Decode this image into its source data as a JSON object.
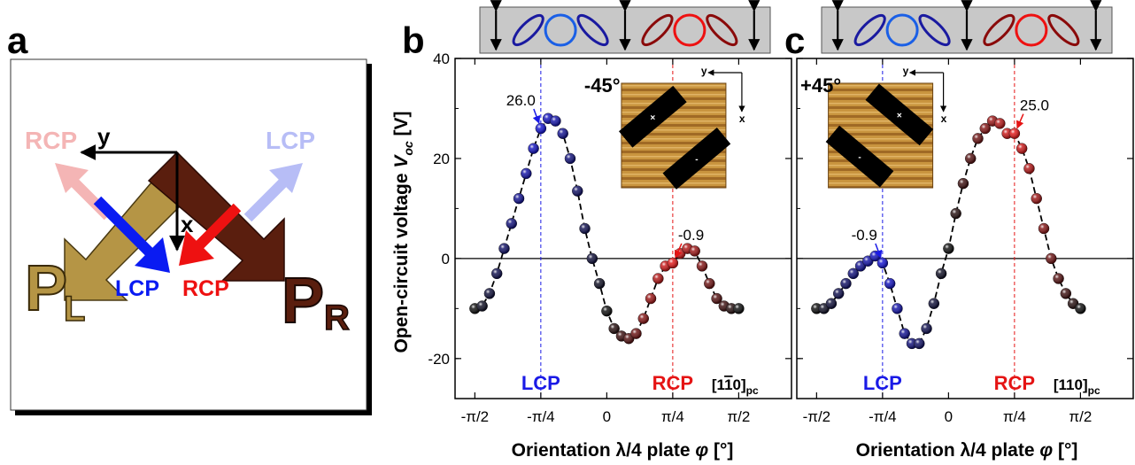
{
  "panel_labels": {
    "a": "a",
    "b": "b",
    "c": "c"
  },
  "panel_a": {
    "p_l": "P",
    "p_l_sub": "L",
    "p_r": "P",
    "p_r_sub": "R",
    "lcp_bottom": "LCP",
    "rcp_bottom": "RCP",
    "lcp_faded": "LCP",
    "rcp_faded": "RCP",
    "axis_y": "y",
    "axis_x": "x",
    "colors": {
      "gold": "#b59545",
      "dark_brown": "#5a1e0e",
      "blue": "#0a1bf2",
      "red": "#ee1111",
      "faded_blue": "#b7bdf6",
      "faded_red": "#f4b5b5"
    }
  },
  "panel_b": {
    "angle_label": "-45°",
    "inset_axis_y": "y",
    "inset_axis_x": "x",
    "lcp_label": "LCP",
    "rcp_label": "RCP",
    "direction_label": "[1̅1̅0]pc",
    "direction_main": "[1",
    "direction_bar": "1",
    "direction_end": "0]",
    "direction_sub": "pc",
    "annot_lcp": "26.0",
    "annot_rcp": "-0.9"
  },
  "panel_c": {
    "angle_label": "+45°",
    "inset_axis_y": "y",
    "inset_axis_x": "x",
    "lcp_label": "LCP",
    "rcp_label": "RCP",
    "direction_main": "[110]",
    "direction_sub": "pc",
    "annot_lcp": "-0.9",
    "annot_rcp": "25.0"
  },
  "axes": {
    "ylabel_main": "Open-circuit voltage ",
    "ylabel_sym": "V",
    "ylabel_sub": "oc",
    "ylabel_unit": " [V]",
    "xlabel_main": "Orientation λ/4 plate  ",
    "xlabel_sym": "φ",
    "xlabel_unit": " [°]",
    "y_ticks": [
      "40",
      "20",
      "0",
      "-20"
    ],
    "x_ticks": [
      "-π/2",
      "-π/4",
      "0",
      "π/4",
      "π/2"
    ]
  },
  "chart_data": [
    {
      "type": "scatter",
      "panel": "b",
      "xlabel": "Orientation λ/4 plate φ [°]",
      "ylabel": "Open-circuit voltage Voc [V]",
      "xlim": [
        -103.5,
        126
      ],
      "ylim": [
        -28,
        40
      ],
      "x_ticks": [
        -90,
        -45,
        0,
        45,
        90
      ],
      "y_ticks": [
        40,
        20,
        0,
        -20
      ],
      "reference_lines": {
        "LCP": -45,
        "RCP": 45,
        "zero": 0
      },
      "annotations": [
        {
          "x": -45,
          "y": 26.0,
          "text": "26.0"
        },
        {
          "x": 45,
          "y": -0.9,
          "text": "-0.9"
        }
      ],
      "series": [
        {
          "x": [
            -90,
            -85,
            -80,
            -75,
            -70,
            -65,
            -60,
            -55,
            -50,
            -45,
            -40,
            -35,
            -30,
            -25,
            -20,
            -15,
            -10,
            -5,
            0,
            5,
            10,
            15,
            20,
            25,
            30,
            35,
            40,
            45,
            50,
            55,
            60,
            65,
            70,
            75,
            80,
            85,
            90
          ],
          "y": [
            -10,
            -9.5,
            -7,
            -3,
            2,
            7,
            12,
            17,
            22,
            26,
            28,
            27.5,
            25,
            20,
            13.5,
            6,
            0,
            -5,
            -10.5,
            -14,
            -15.5,
            -16,
            -15,
            -12,
            -8,
            -4,
            -1.5,
            -0.9,
            1,
            2,
            1.5,
            -1.5,
            -5,
            -8,
            -9.5,
            -10,
            -10
          ]
        }
      ]
    },
    {
      "type": "scatter",
      "panel": "c",
      "xlabel": "Orientation λ/4 plate φ [°]",
      "ylabel": "Open-circuit voltage Voc [V]",
      "xlim": [
        -103.5,
        126
      ],
      "ylim": [
        -28,
        40
      ],
      "x_ticks": [
        -90,
        -45,
        0,
        45,
        90
      ],
      "y_ticks": [
        40,
        20,
        0,
        -20
      ],
      "reference_lines": {
        "LCP": -45,
        "RCP": 45,
        "zero": 0
      },
      "annotations": [
        {
          "x": -45,
          "y": -0.9,
          "text": "-0.9"
        },
        {
          "x": 45,
          "y": 25.0,
          "text": "25.0"
        }
      ],
      "series": [
        {
          "x": [
            -90,
            -85,
            -80,
            -75,
            -70,
            -65,
            -60,
            -55,
            -50,
            -45,
            -40,
            -35,
            -30,
            -25,
            -20,
            -15,
            -10,
            -5,
            0,
            5,
            10,
            15,
            20,
            25,
            30,
            35,
            40,
            45,
            50,
            55,
            60,
            65,
            70,
            75,
            80,
            85,
            90
          ],
          "y": [
            -10,
            -10,
            -9,
            -7,
            -5,
            -3,
            -1.5,
            -0.5,
            0.5,
            -0.9,
            -5,
            -10,
            -15,
            -17,
            -17,
            -14,
            -9,
            -3,
            2,
            9,
            15,
            20,
            24,
            26,
            27.5,
            27,
            25,
            25,
            22,
            18,
            12,
            6,
            0,
            -4,
            -7,
            -9,
            -10
          ]
        }
      ]
    }
  ]
}
